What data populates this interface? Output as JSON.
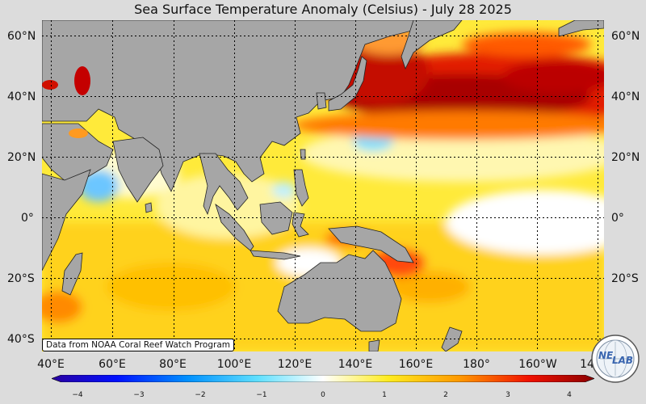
{
  "title": "Sea Surface Temperature Anomaly (Celsius) - July 28 2025",
  "credit": "Data from NOAA Coral Reef Watch Program",
  "lat_labels": {
    "l60": "60°N",
    "l40": "40°N",
    "l20": "20°N",
    "l0": "0°",
    "l20s": "20°S",
    "l40s": "40°S"
  },
  "lon_labels": {
    "e40": "40°E",
    "e60": "60°E",
    "e80": "80°E",
    "e100": "100°E",
    "e120": "120°E",
    "e140": "140°E",
    "e160": "160°E",
    "e180": "180°",
    "w160": "160°W",
    "w140": "14"
  },
  "colorbar": {
    "ticks": {
      "m4": "−4",
      "m3": "−3",
      "m2": "−2",
      "m1": "−1",
      "z": "0",
      "p1": "1",
      "p2": "2",
      "p3": "3",
      "p4": "4"
    },
    "range": [
      -4,
      4
    ]
  },
  "logo": {
    "text_a": "NE",
    "text_b": "LAB"
  },
  "colors": {
    "land": "#a6a6a6",
    "background": "#dcdcdc",
    "warm_max": "#8b0000",
    "cold_max": "#2a00a0"
  }
}
